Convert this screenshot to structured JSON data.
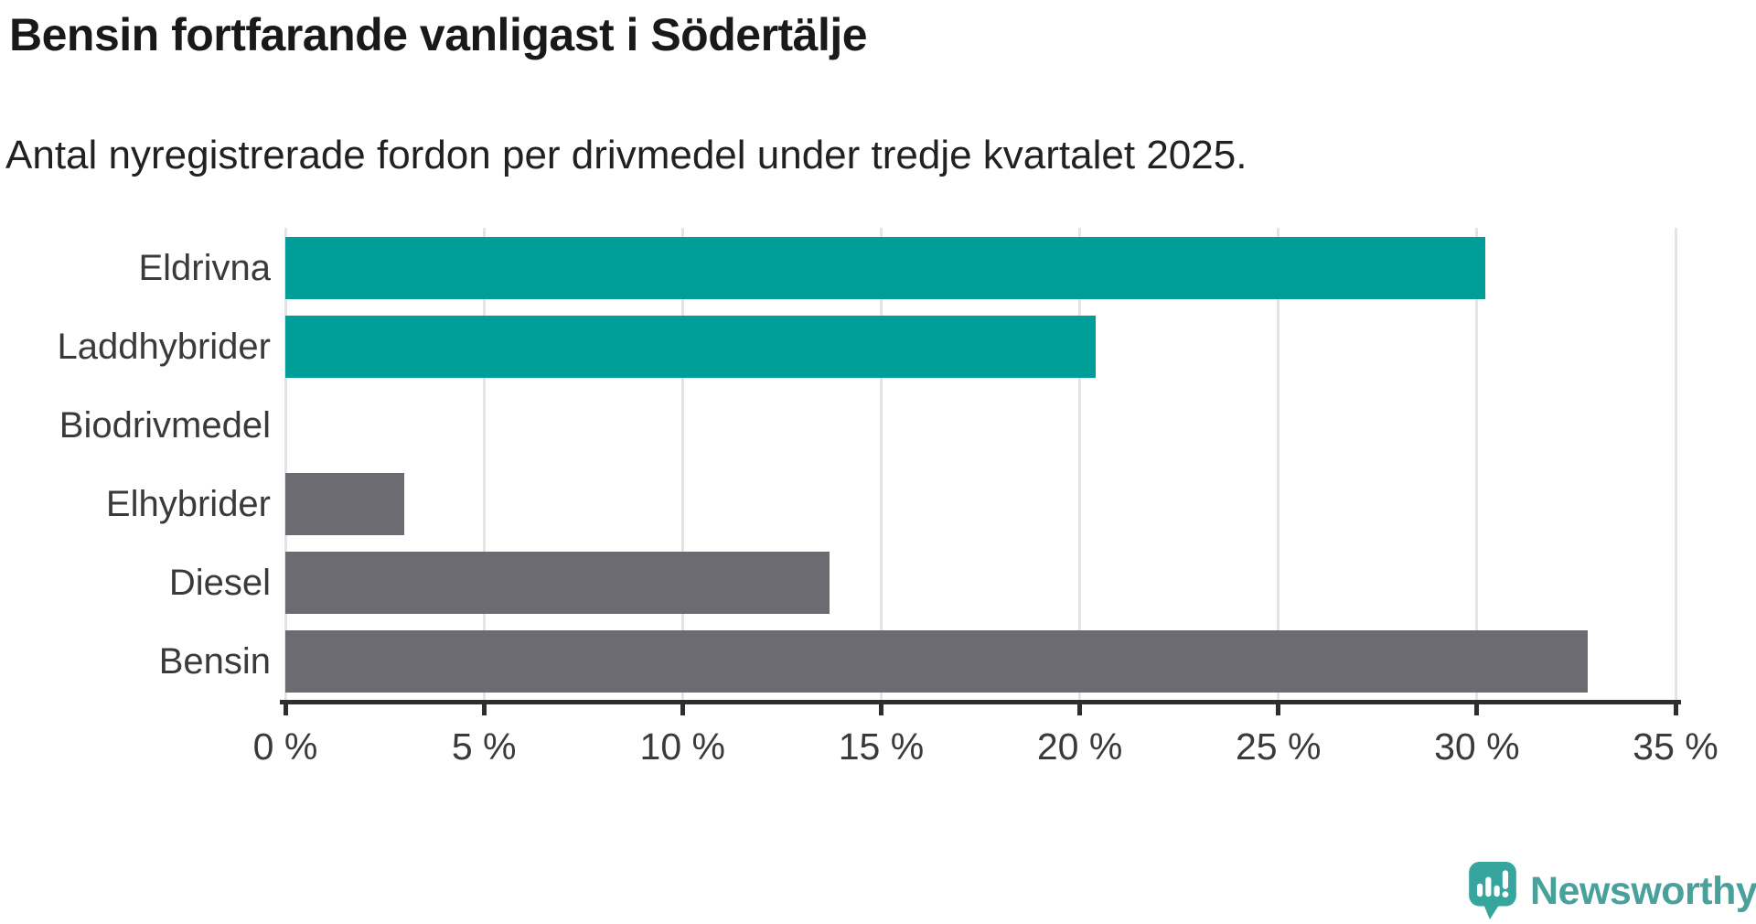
{
  "header": {
    "title": "Bensin fortfarande vanligast i Södertälje",
    "subtitle": "Antal nyregistrerade fordon per drivmedel under tredje kvartalet 2025."
  },
  "chart_data": {
    "type": "bar",
    "orientation": "horizontal",
    "title": "Bensin fortfarande vanligast i Södertälje",
    "subtitle": "Antal nyregistrerade fordon per drivmedel under tredje kvartalet 2025.",
    "categories": [
      "Eldrivna",
      "Laddhybrider",
      "Biodrivmedel",
      "Elhybrider",
      "Diesel",
      "Bensin"
    ],
    "values": [
      30.2,
      20.4,
      0,
      3.0,
      13.7,
      32.8
    ],
    "unit": "%",
    "bar_colors": [
      "#009e99",
      "#009e99",
      "#6c6b72",
      "#6c6b72",
      "#6c6b72",
      "#6c6b72"
    ],
    "highlight_color": "#009e99",
    "default_color": "#6c6b72",
    "xlabel": "",
    "ylabel": "",
    "xlim": [
      0,
      35
    ],
    "x_ticks": [
      0,
      5,
      10,
      15,
      20,
      25,
      30,
      35
    ],
    "x_tick_labels": [
      "0 %",
      "5 %",
      "10 %",
      "15 %",
      "20 %",
      "25 %",
      "30 %",
      "35 %"
    ],
    "grid": "vertical-gridlines-on",
    "legend": "none",
    "gridline_color": "#e4e4e4",
    "axis_color": "#2e2e2e",
    "label_color": "#3a3a3a"
  },
  "footer": {
    "brand": "Newsworthy",
    "brand_text_color": "#4aa19b",
    "brand_icon_color": "#35a59e"
  }
}
